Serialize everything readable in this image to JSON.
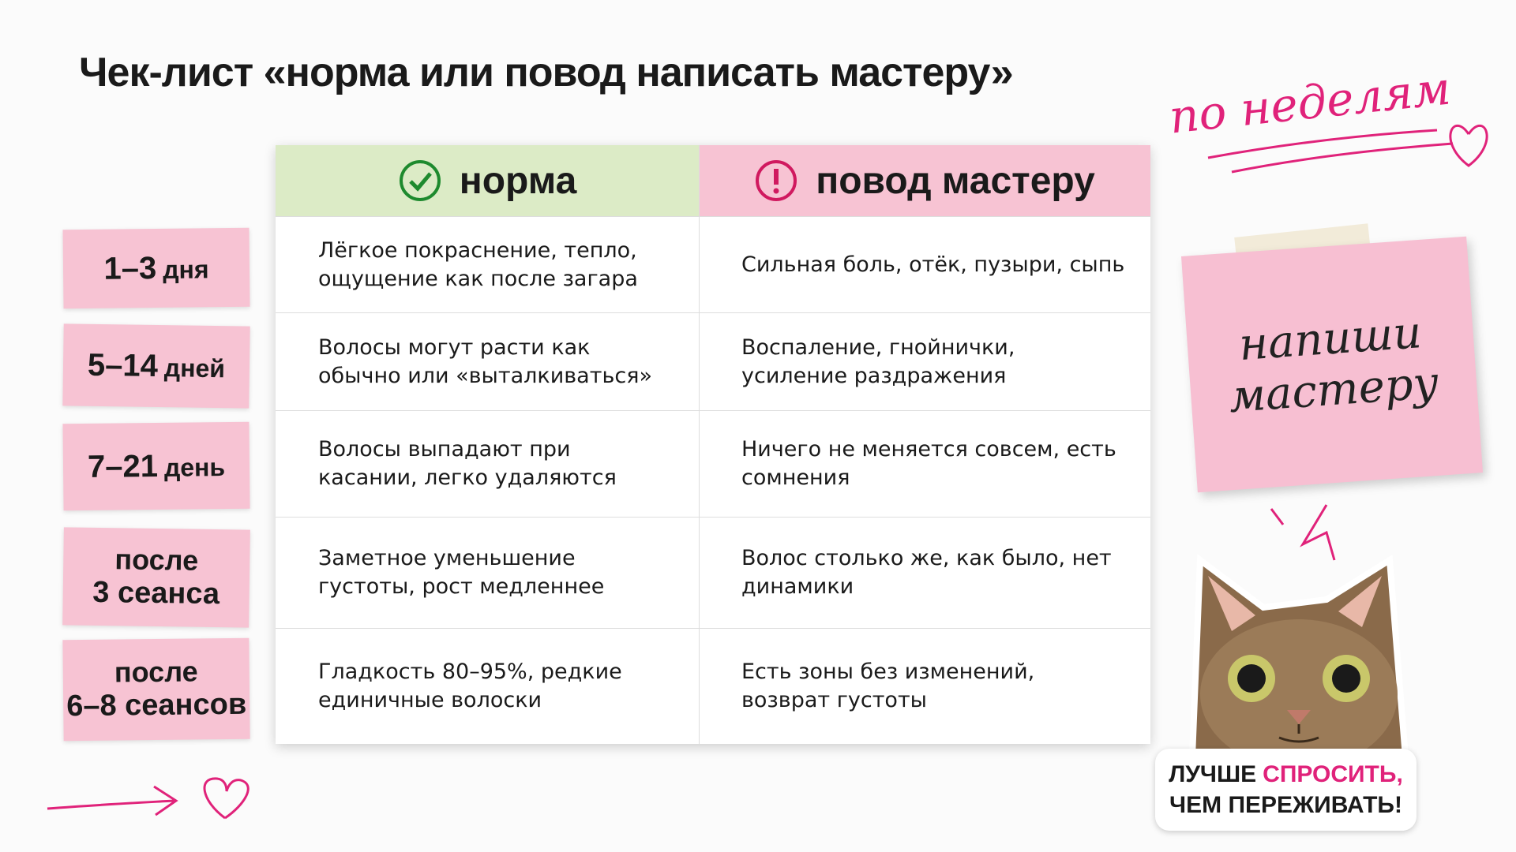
{
  "title": "Чек-лист «норма или повод написать мастеру»",
  "note": "по неделям",
  "table": {
    "headers": [
      "норма",
      "повод мастеру"
    ],
    "rows": [
      {
        "period": [
          "1–3",
          "дня"
        ],
        "normal": "Лёгкое покраснение, тепло, ощущение как после загара",
        "concern": "Сильная боль, отёк, пузыри, сыпь"
      },
      {
        "period": [
          "5–14",
          "дней"
        ],
        "normal": "Волосы могут расти как обычно или «выталкиваться»",
        "concern": "Воспаление, гнойнички, усиление раздражения"
      },
      {
        "period": [
          "7–21",
          "день"
        ],
        "normal": "Волосы выпадают при касании, легко удаляются",
        "concern": "Ничего не меняется совсем, есть сомнения"
      },
      {
        "period": [
          "после",
          "3 сеанса"
        ],
        "normal": "Заметное уменьшение густоты, рост медленнее",
        "concern": "Волос столько же, как было, нет динамики"
      },
      {
        "period": [
          "после",
          "6–8 сеансов"
        ],
        "normal": "Гладкость 80–95%, редкие единичные волоски",
        "concern": "Есть зоны без изменений, возврат густоты"
      }
    ]
  },
  "sticky_note": [
    "напиши",
    "мастеру"
  ],
  "sticker": {
    "start": "ЛУЧШЕ",
    "highlight": "СПРОСИТЬ,",
    "end": "ЧЕМ ПЕРЕЖИВАТЬ!"
  }
}
